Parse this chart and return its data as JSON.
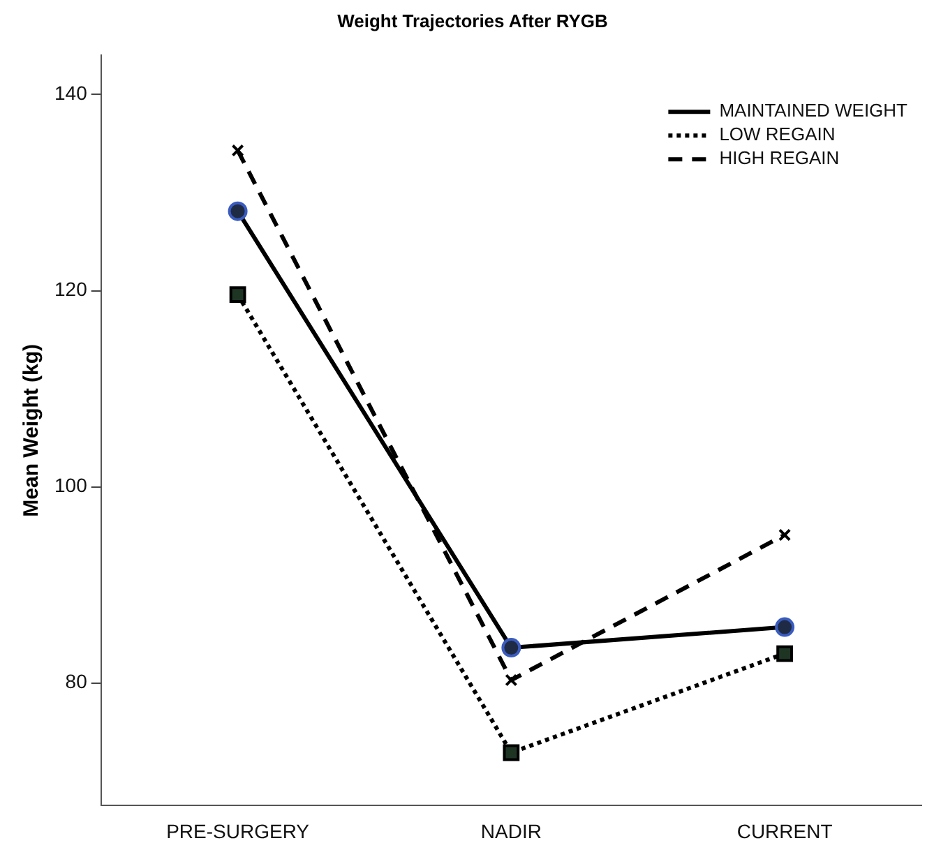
{
  "chart_data": {
    "type": "line",
    "title": "Weight Trajectories After RYGB",
    "ylabel": "Mean Weight (kg)",
    "categories": [
      "PRE-SURGERY",
      "NADIR",
      "CURRENT"
    ],
    "series": [
      {
        "name": "MAINTAINED WEIGHT",
        "color": "#000000",
        "values": [
          128.1,
          83.6,
          85.7
        ],
        "marker": "circle",
        "line_style": "solid"
      },
      {
        "name": "LOW REGAIN",
        "color": "#000000",
        "values": [
          119.6,
          72.9,
          83.0
        ],
        "marker": "square",
        "line_style": "dotted"
      },
      {
        "name": "HIGH REGAIN",
        "color": "#000000",
        "values": [
          134.3,
          80.3,
          95.1
        ],
        "marker": "cross",
        "line_style": "dashed"
      }
    ],
    "ylim": [
      67.5,
      144
    ],
    "yticks": [
      80,
      100,
      120,
      140
    ],
    "grid": false,
    "legend": "top right"
  }
}
